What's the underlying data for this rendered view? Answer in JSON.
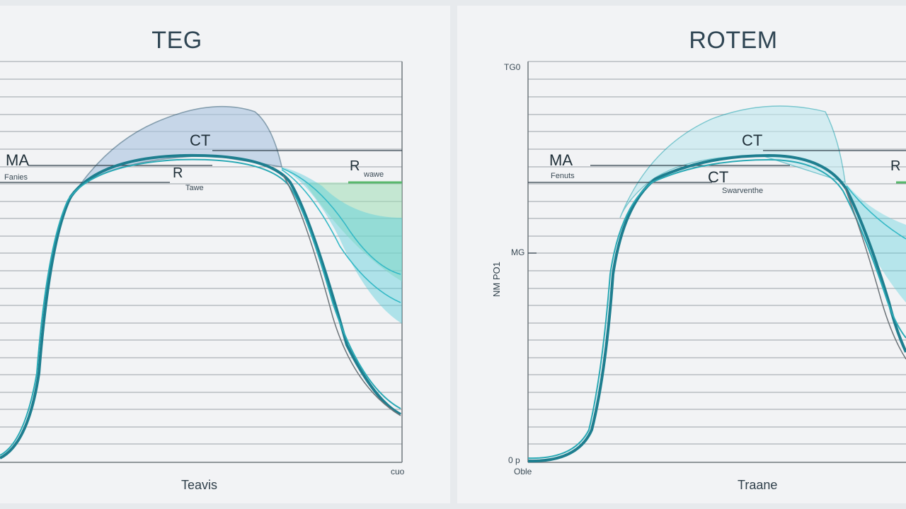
{
  "teg": {
    "title": "TEG",
    "labels": {
      "ma": "MA",
      "ma_sub": "Fanies",
      "ct": "CT",
      "r_mid": "R",
      "r_mid_sub": "Tawe",
      "r_right": "R",
      "r_right_sub": "wawe",
      "x_axis": "Teavis",
      "corner_x": "cuo"
    }
  },
  "rotem": {
    "title": "ROTEM",
    "labels": {
      "top_left": "TG0",
      "ma": "MA",
      "ma_sub": "Fenuts",
      "ct_top": "CT",
      "ct_mid": "CT",
      "ct_mid_sub": "Swarventhe",
      "r_right": "R",
      "y_tick": "MG",
      "y_vert": "NM PO1",
      "origin": "0 p",
      "origin_sub": "Oble",
      "x_axis": "Traane"
    }
  },
  "colors": {
    "teal_dark": "#1e7e8f",
    "teal": "#2aa9b5",
    "cyan_fill": "#5ccfdc",
    "blue_fill": "#a9c3e0",
    "green_fill": "#8fd9a8",
    "grid": "#8c9499"
  }
}
